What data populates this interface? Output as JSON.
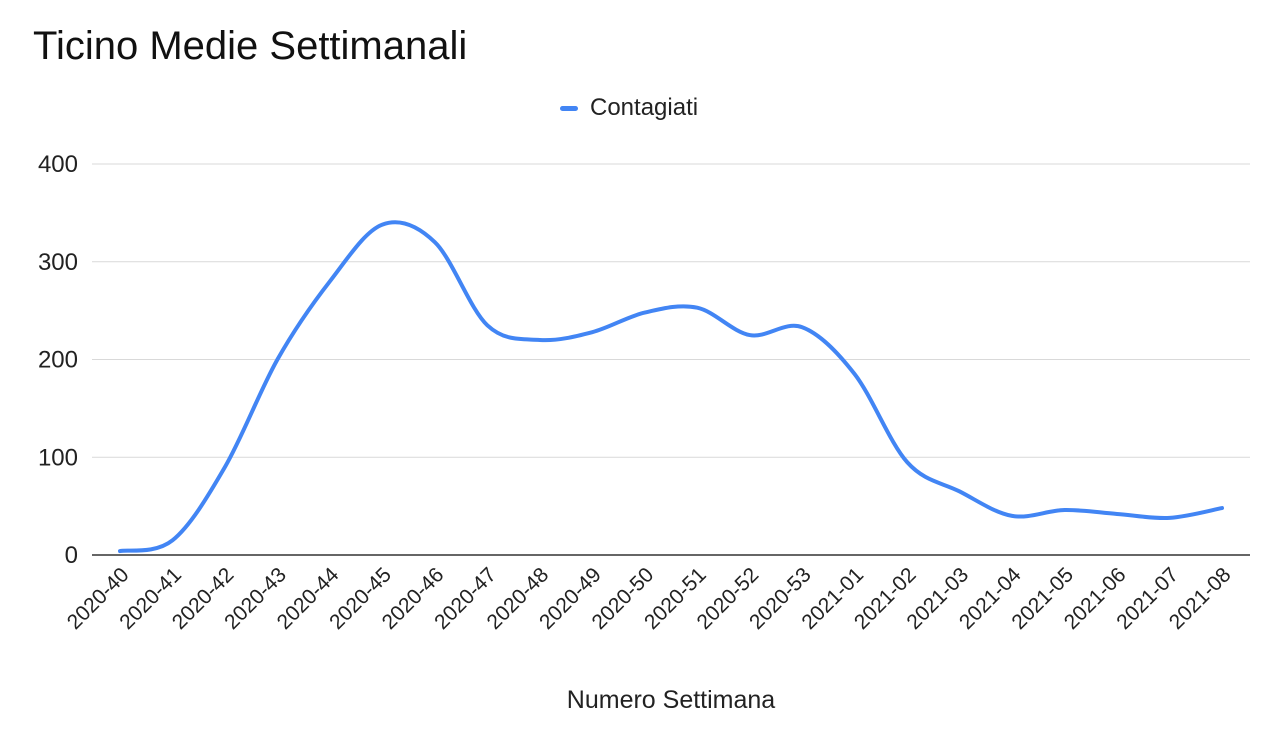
{
  "chart_data": {
    "type": "line",
    "title": "Ticino Medie Settimanali",
    "xlabel": "Numero Settimana",
    "ylabel": "",
    "ylim": [
      0,
      400
    ],
    "yticks": [
      0,
      100,
      200,
      300,
      400
    ],
    "grid": true,
    "legend_position": "top",
    "categories": [
      "2020-40",
      "2020-41",
      "2020-42",
      "2020-43",
      "2020-44",
      "2020-45",
      "2020-46",
      "2020-47",
      "2020-48",
      "2020-49",
      "2020-50",
      "2020-51",
      "2020-52",
      "2020-53",
      "2021-01",
      "2021-02",
      "2021-03",
      "2021-04",
      "2021-05",
      "2021-06",
      "2021-07",
      "2021-08"
    ],
    "series": [
      {
        "name": "Contagiati",
        "color": "#4285f4",
        "values": [
          4,
          15,
          90,
          200,
          280,
          338,
          320,
          235,
          220,
          228,
          248,
          253,
          225,
          233,
          185,
          95,
          65,
          40,
          46,
          42,
          38,
          48
        ]
      }
    ]
  }
}
